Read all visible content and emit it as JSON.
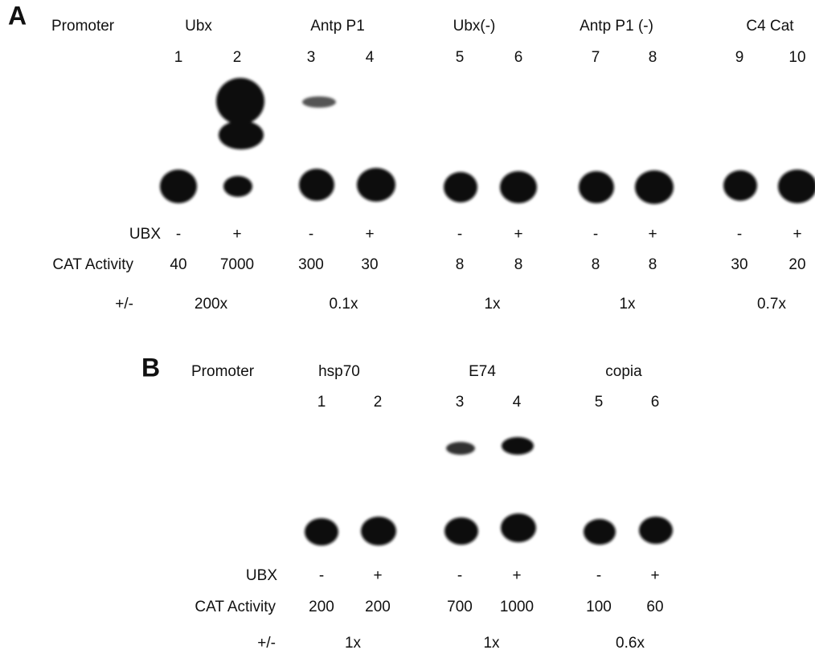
{
  "panel_a": {
    "label": "A",
    "promoter_label": "Promoter",
    "promoters": [
      "Ubx",
      "Antp P1",
      "Ubx(-)",
      "Antp P1 (-)",
      "C4 Cat"
    ],
    "lanes": [
      "1",
      "2",
      "3",
      "4",
      "5",
      "6",
      "7",
      "8",
      "9",
      "10"
    ],
    "ubx_label": "UBX",
    "ubx": [
      "-",
      "+",
      "-",
      "+",
      "-",
      "+",
      "-",
      "+",
      "-",
      "+"
    ],
    "cat_label": "CAT Activity",
    "cat_activity": [
      "40",
      "7000",
      "300",
      "30",
      "8",
      "8",
      "8",
      "8",
      "30",
      "20"
    ],
    "fold_label": "+/-",
    "fold": [
      "200x",
      "0.1x",
      "1x",
      "1x",
      "0.7x"
    ]
  },
  "panel_b": {
    "label": "B",
    "promoter_label": "Promoter",
    "promoters": [
      "hsp70",
      "E74",
      "copia"
    ],
    "lanes": [
      "1",
      "2",
      "3",
      "4",
      "5",
      "6"
    ],
    "ubx_label": "UBX",
    "ubx": [
      "-",
      "+",
      "-",
      "+",
      "-",
      "+"
    ],
    "cat_label": "CAT Activity",
    "cat_activity": [
      "200",
      "200",
      "700",
      "1000",
      "100",
      "60"
    ],
    "fold_label": "+/-",
    "fold": [
      "1x",
      "1x",
      "0.6x"
    ]
  }
}
